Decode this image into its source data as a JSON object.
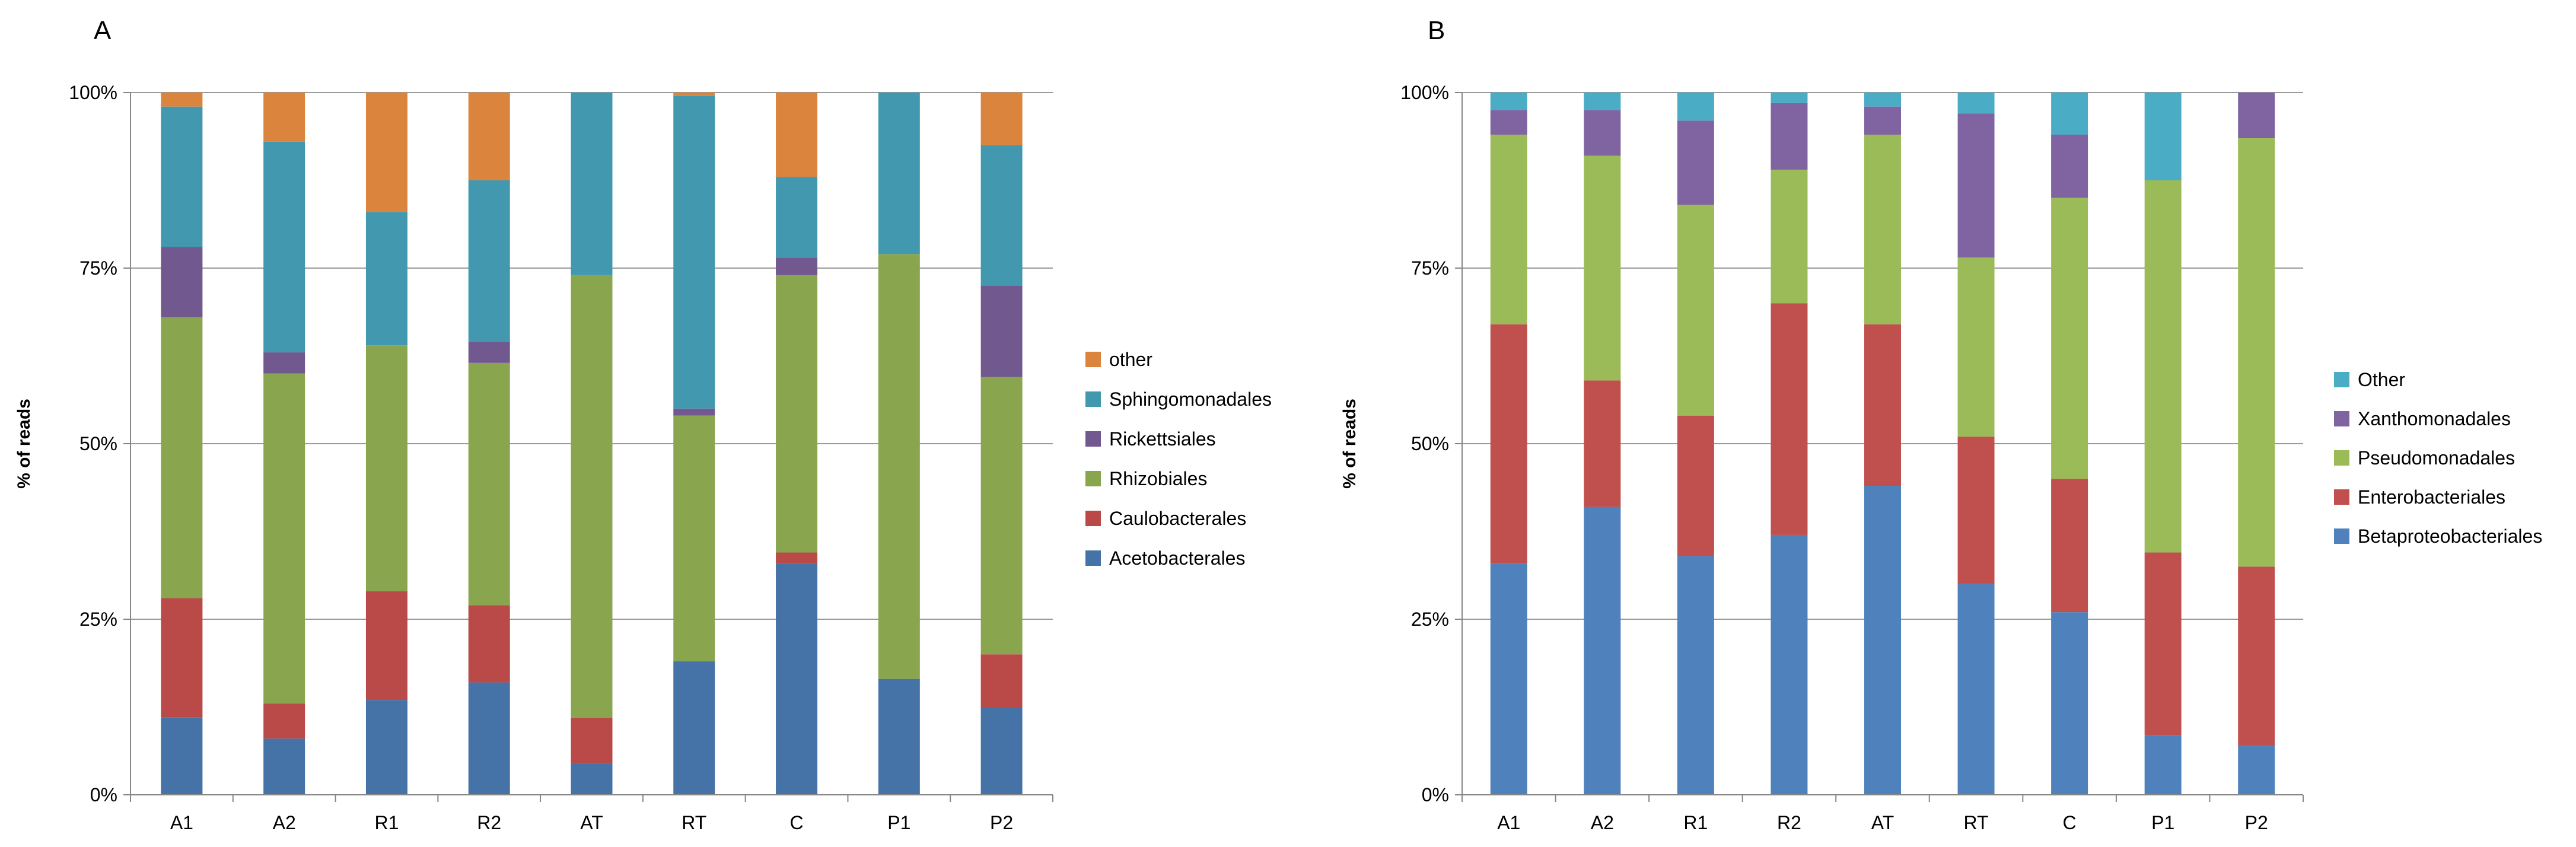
{
  "chart_data": [
    {
      "type": "bar",
      "stacked": true,
      "panel_label": "A",
      "ylabel": "% of reads",
      "ylim": [
        0,
        100
      ],
      "yticks": [
        0,
        25,
        50,
        75,
        100
      ],
      "ytick_labels": [
        "0%",
        "25%",
        "50%",
        "75%",
        "100%"
      ],
      "grid": true,
      "legend_position": "right",
      "categories": [
        "A1",
        "A2",
        "R1",
        "R2",
        "AT",
        "RT",
        "C",
        "P1",
        "P2"
      ],
      "series": [
        {
          "name": "Acetobacterales",
          "color": "#4572a7",
          "values": [
            11,
            8,
            13.5,
            16,
            4.5,
            19,
            33,
            16.5,
            12.5
          ]
        },
        {
          "name": "Caulobacterales",
          "color": "#b94a48",
          "values": [
            17,
            5,
            15.5,
            11,
            6.5,
            0,
            1.5,
            0,
            7.5
          ]
        },
        {
          "name": "Rhizobiales",
          "color": "#89a54e",
          "values": [
            40,
            47,
            35,
            34.5,
            63,
            35,
            39.5,
            60.5,
            39.5
          ]
        },
        {
          "name": "Rickettsiales",
          "color": "#71588f",
          "values": [
            10,
            3,
            0,
            3,
            0,
            1,
            2.5,
            0,
            13
          ]
        },
        {
          "name": "Sphingomonadales",
          "color": "#4198af",
          "values": [
            20,
            30,
            19,
            23,
            26,
            44.5,
            11.5,
            23,
            20
          ]
        },
        {
          "name": "other",
          "color": "#db843d",
          "values": [
            2,
            7,
            17,
            12.5,
            0,
            0.5,
            12,
            0,
            7.5
          ]
        }
      ]
    },
    {
      "type": "bar",
      "stacked": true,
      "panel_label": "B",
      "ylabel": "% of reads",
      "ylim": [
        0,
        100
      ],
      "yticks": [
        0,
        25,
        50,
        75,
        100
      ],
      "ytick_labels": [
        "0%",
        "25%",
        "50%",
        "75%",
        "100%"
      ],
      "grid": true,
      "legend_position": "right",
      "categories": [
        "A1",
        "A2",
        "R1",
        "R2",
        "AT",
        "RT",
        "C",
        "P1",
        "P2"
      ],
      "series": [
        {
          "name": "Betaproteobacteriales",
          "color": "#4f81bd",
          "values": [
            33,
            41,
            34,
            37,
            44,
            30,
            26,
            8.5,
            7
          ]
        },
        {
          "name": "Enterobacteriales",
          "color": "#c0504d",
          "values": [
            34,
            18,
            20,
            33,
            23,
            21,
            19,
            26,
            25.5
          ]
        },
        {
          "name": "Pseudomonadales",
          "color": "#9bbb59",
          "values": [
            27,
            32,
            30,
            19,
            27,
            25.5,
            40,
            53,
            61
          ]
        },
        {
          "name": "Xanthomonadales",
          "color": "#8064a2",
          "values": [
            3.5,
            6.5,
            12,
            9.5,
            4,
            20.5,
            9,
            0,
            6.5
          ]
        },
        {
          "name": "Other",
          "color": "#4bacc6",
          "values": [
            2.5,
            2.5,
            4,
            1.5,
            2,
            3,
            6,
            12.5,
            0
          ]
        }
      ]
    }
  ]
}
